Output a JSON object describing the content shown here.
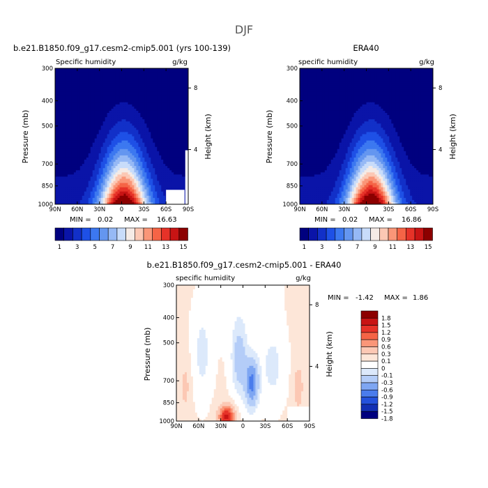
{
  "figure": {
    "title": "DJF"
  },
  "panels": [
    {
      "id": "model",
      "title": "b.e21.B1850.f09_g17.cesm2-cmip5.001 (yrs 100-139)",
      "subtitle_left": "Specific humidity",
      "subtitle_right": "g/kg",
      "ylabel": "Pressure (mb)",
      "ylabel_right": "Height (km)",
      "min_label": "MIN =",
      "min_value": "0.02",
      "max_label": "MAX =",
      "max_value": "16.63"
    },
    {
      "id": "obs",
      "title": "ERA40",
      "subtitle_left": "specific humidity",
      "subtitle_right": "g/kg",
      "ylabel": "Pressure (mb)",
      "ylabel_right": "Height (km)",
      "min_label": "MIN =",
      "min_value": "0.02",
      "max_label": "MAX =",
      "max_value": "16.86"
    },
    {
      "id": "diff",
      "title": "b.e21.B1850.f09_g17.cesm2-cmip5.001 - ERA40",
      "subtitle_left": "specific humidity",
      "subtitle_right": "g/kg",
      "ylabel": "Pressure (mb)",
      "ylabel_right": "Height (km)",
      "min_label": "MIN =",
      "min_value": "-1.42",
      "max_label": "MAX =",
      "max_value": "1.86"
    }
  ],
  "chart_data": [
    {
      "type": "heatmap",
      "panel": "model",
      "title": "b.e21.B1850.f09_g17.cesm2-cmip5.001 (yrs 100-139)",
      "ylabel": "Pressure (mb)",
      "ylabel_right": "Height (km)",
      "x_ticks": [
        "90N",
        "60N",
        "30N",
        "0",
        "30S",
        "60S",
        "90S"
      ],
      "x_range": [
        90,
        -90
      ],
      "y_ticks": [
        300,
        400,
        500,
        700,
        850,
        1000
      ],
      "y_range": [
        1000,
        300
      ],
      "y_scale": "log",
      "right_ticks": [
        8,
        4
      ],
      "min": 0.02,
      "max": 16.63,
      "units": "g/kg",
      "colorbar_labels": [
        "1",
        "3",
        "5",
        "7",
        "9",
        "11",
        "13",
        "15"
      ],
      "field": {
        "peak_lat": 0,
        "peak_value": 16.63,
        "surface_value_pole": 1.0
      }
    },
    {
      "type": "heatmap",
      "panel": "obs",
      "title": "ERA40",
      "ylabel": "Pressure (mb)",
      "ylabel_right": "Height (km)",
      "x_ticks": [
        "90N",
        "60N",
        "30N",
        "0",
        "30S",
        "60S",
        "90S"
      ],
      "x_range": [
        90,
        -90
      ],
      "y_ticks": [
        300,
        400,
        500,
        700,
        850,
        1000
      ],
      "y_range": [
        1000,
        300
      ],
      "y_scale": "log",
      "right_ticks": [
        8,
        4
      ],
      "min": 0.02,
      "max": 16.86,
      "units": "g/kg",
      "colorbar_labels": [
        "1",
        "3",
        "5",
        "7",
        "9",
        "11",
        "13",
        "15"
      ],
      "field": {
        "peak_lat": 0,
        "peak_value": 16.86,
        "surface_value_pole": 1.0
      }
    },
    {
      "type": "heatmap",
      "panel": "diff",
      "title": "b.e21.B1850.f09_g17.cesm2-cmip5.001 - ERA40",
      "ylabel": "Pressure (mb)",
      "ylabel_right": "Height (km)",
      "x_ticks": [
        "90N",
        "60N",
        "30N",
        "0",
        "30S",
        "60S",
        "90S"
      ],
      "x_range": [
        90,
        -90
      ],
      "y_ticks": [
        300,
        400,
        500,
        700,
        850,
        1000
      ],
      "y_range": [
        1000,
        300
      ],
      "y_scale": "log",
      "right_ticks": [
        8,
        4
      ],
      "min": -1.42,
      "max": 1.86,
      "units": "g/kg",
      "colorbar_labels": [
        "1.8",
        "1.5",
        "1.2",
        "0.9",
        "0.6",
        "0.3",
        "0.1",
        "0",
        "-0.1",
        "-0.3",
        "-0.6",
        "-0.9",
        "-1.2",
        "-1.5",
        "-1.8"
      ]
    }
  ],
  "colors": {
    "abs_scale": [
      "#00007f",
      "#0a14a8",
      "#1230c8",
      "#1e50e6",
      "#3c78f0",
      "#6496f0",
      "#96b9f5",
      "#c8dcfa",
      "#f5ebe6",
      "#fcc8b4",
      "#fa9678",
      "#f56446",
      "#e63228",
      "#c81414",
      "#8c0000"
    ],
    "diff_scale": [
      "#8c0000",
      "#c81414",
      "#e63228",
      "#f56446",
      "#fa9678",
      "#fcc8b4",
      "#fde6d8",
      "#ffffff",
      "#dce9fb",
      "#b4cdf8",
      "#7ea6f2",
      "#4a7cec",
      "#2452dc",
      "#1230b4",
      "#00007f"
    ]
  }
}
